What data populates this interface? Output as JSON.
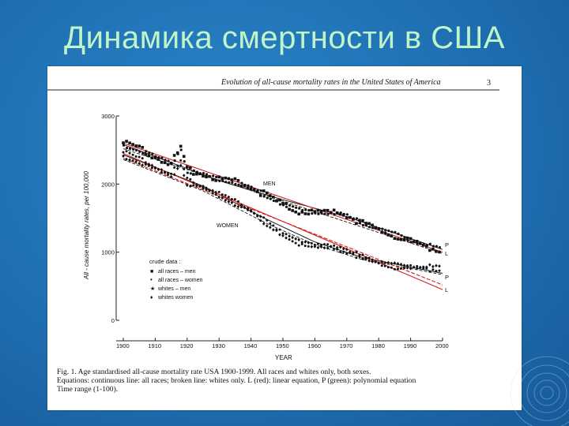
{
  "slide": {
    "title": "Динамика смертности в США"
  },
  "figure": {
    "header": "Evolution of all-cause mortality rates in the United States of America",
    "page_number": "3",
    "caption": [
      "Fig. 1.   Age standardised all-cause mortality rate USA 1900-1999. All races and whites only, both sexes.",
      "Equations: continuous line: all races; broken line: whites only. L (red): linear equation, P (green): polynomial equation",
      "Time range (1-100)."
    ]
  },
  "chart_data": {
    "type": "scatter",
    "ylabel": "All - cause mortality rates, per 100,000",
    "xlabel": "YEAR",
    "xlim": [
      1897,
      2002
    ],
    "ylim": [
      0,
      3000
    ],
    "x_ticks": [
      "1900",
      "1910",
      "1920",
      "1930",
      "1940",
      "1950",
      "1960",
      "1970",
      "1980",
      "1990",
      "2000"
    ],
    "y_ticks": [
      "0",
      "1000",
      "2000",
      "3000"
    ],
    "series_labels": {
      "men": "MEN",
      "women": "WOMEN"
    },
    "legend": {
      "title": "crude data :",
      "entries": [
        {
          "marker": "■",
          "label": "all races  –  men"
        },
        {
          "marker": "•",
          "label": "all races  –  women"
        },
        {
          "marker": "★",
          "label": "whites  –  men"
        },
        {
          "marker": "♦",
          "label": "whites      women"
        }
      ]
    },
    "fit_labels": {
      "men": [
        "P",
        "L"
      ],
      "women": [
        "P",
        "L"
      ]
    },
    "anchors": {
      "all_races_men": [
        [
          1900,
          2620
        ],
        [
          1905,
          2550
        ],
        [
          1910,
          2430
        ],
        [
          1915,
          2330
        ],
        [
          1918,
          2560
        ],
        [
          1920,
          2230
        ],
        [
          1925,
          2180
        ],
        [
          1930,
          2100
        ],
        [
          1935,
          2060
        ],
        [
          1940,
          1980
        ],
        [
          1945,
          1850
        ],
        [
          1950,
          1720
        ],
        [
          1955,
          1630
        ],
        [
          1960,
          1600
        ],
        [
          1965,
          1600
        ],
        [
          1968,
          1620
        ],
        [
          1970,
          1560
        ],
        [
          1975,
          1440
        ],
        [
          1980,
          1360
        ],
        [
          1985,
          1270
        ],
        [
          1990,
          1180
        ],
        [
          1995,
          1110
        ],
        [
          1999,
          1050
        ]
      ],
      "all_races_women": [
        [
          1900,
          2480
        ],
        [
          1905,
          2390
        ],
        [
          1910,
          2280
        ],
        [
          1915,
          2170
        ],
        [
          1918,
          2350
        ],
        [
          1920,
          2070
        ],
        [
          1925,
          1990
        ],
        [
          1930,
          1880
        ],
        [
          1935,
          1760
        ],
        [
          1940,
          1640
        ],
        [
          1945,
          1450
        ],
        [
          1950,
          1280
        ],
        [
          1955,
          1160
        ],
        [
          1960,
          1110
        ],
        [
          1965,
          1100
        ],
        [
          1970,
          1030
        ],
        [
          1975,
          940
        ],
        [
          1980,
          850
        ],
        [
          1985,
          810
        ],
        [
          1990,
          790
        ],
        [
          1995,
          780
        ],
        [
          1999,
          770
        ]
      ],
      "whites_men": [
        [
          1900,
          2560
        ],
        [
          1905,
          2480
        ],
        [
          1910,
          2380
        ],
        [
          1915,
          2280
        ],
        [
          1918,
          2500
        ],
        [
          1920,
          2180
        ],
        [
          1925,
          2120
        ],
        [
          1930,
          2050
        ],
        [
          1935,
          2010
        ],
        [
          1940,
          1930
        ],
        [
          1945,
          1810
        ],
        [
          1950,
          1690
        ],
        [
          1955,
          1600
        ],
        [
          1960,
          1570
        ],
        [
          1965,
          1570
        ],
        [
          1970,
          1520
        ],
        [
          1975,
          1410
        ],
        [
          1980,
          1330
        ],
        [
          1985,
          1250
        ],
        [
          1990,
          1160
        ],
        [
          1995,
          1090
        ],
        [
          1999,
          1040
        ]
      ],
      "whites_women": [
        [
          1900,
          2400
        ],
        [
          1905,
          2310
        ],
        [
          1910,
          2200
        ],
        [
          1915,
          2090
        ],
        [
          1918,
          2270
        ],
        [
          1920,
          2000
        ],
        [
          1925,
          1920
        ],
        [
          1930,
          1810
        ],
        [
          1935,
          1700
        ],
        [
          1940,
          1580
        ],
        [
          1945,
          1400
        ],
        [
          1950,
          1240
        ],
        [
          1955,
          1130
        ],
        [
          1960,
          1080
        ],
        [
          1965,
          1070
        ],
        [
          1970,
          1000
        ],
        [
          1975,
          920
        ],
        [
          1980,
          830
        ],
        [
          1985,
          790
        ],
        [
          1990,
          775
        ],
        [
          1995,
          765
        ],
        [
          1999,
          760
        ]
      ]
    },
    "fits": {
      "men_linear_red": [
        [
          1900,
          2600
        ],
        [
          2000,
          1000
        ]
      ],
      "men_poly_black": [
        [
          1900,
          2580
        ],
        [
          1930,
          2050
        ],
        [
          1950,
          1770
        ],
        [
          1970,
          1520
        ],
        [
          1985,
          1280
        ],
        [
          2000,
          1040
        ]
      ],
      "men_dashed": [
        [
          1900,
          2520
        ],
        [
          2000,
          980
        ]
      ],
      "women_linear_red": [
        [
          1900,
          2450
        ],
        [
          2000,
          450
        ]
      ],
      "women_linear_red_2": [
        [
          1900,
          2380
        ],
        [
          2000,
          520
        ]
      ],
      "women_poly_black": [
        [
          1900,
          2430
        ],
        [
          1925,
          1970
        ],
        [
          1945,
          1480
        ],
        [
          1960,
          1150
        ],
        [
          1975,
          920
        ],
        [
          1990,
          780
        ],
        [
          2000,
          690
        ]
      ],
      "women_dashed": [
        [
          1900,
          2360
        ],
        [
          1925,
          1900
        ],
        [
          1945,
          1420
        ],
        [
          1960,
          1110
        ],
        [
          1975,
          890
        ],
        [
          1990,
          760
        ],
        [
          2000,
          670
        ]
      ]
    },
    "colors": {
      "linear": "#d42020",
      "poly": "#1a1a1a",
      "points": "#111111"
    }
  }
}
